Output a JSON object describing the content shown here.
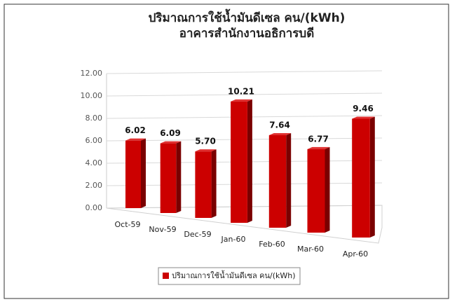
{
  "chart_data": {
    "type": "bar3d",
    "title": "ปริมาณการใช้น้ำมันดีเซล คน/(kWh)",
    "subtitle": "อาคารสำนักงานอธิการบดี",
    "categories": [
      "Oct-59",
      "Nov-59",
      "Dec-59",
      "Jan-60",
      "Feb-60",
      "Mar-60",
      "Apr-60"
    ],
    "series": [
      {
        "name": "ปริมาณการใช้น้ำมันดีเซล คน/(kWh)",
        "color": "#cc0000",
        "values": [
          6.02,
          6.09,
          5.7,
          10.21,
          7.64,
          6.77,
          9.46
        ],
        "value_labels": [
          "6.02",
          "6.09",
          "5.70",
          "10.21",
          "7.64",
          "6.77",
          "9.46"
        ]
      }
    ],
    "ylim": [
      0,
      12
    ],
    "yticks": [
      {
        "value": 0,
        "label": "0.00"
      },
      {
        "value": 2,
        "label": "2.00"
      },
      {
        "value": 4,
        "label": "4.00"
      },
      {
        "value": 6,
        "label": "6.00"
      },
      {
        "value": 8,
        "label": "8.00"
      },
      {
        "value": 10,
        "label": "10.00"
      },
      {
        "value": 12,
        "label": "12.00"
      }
    ],
    "grid": true,
    "legend": "bottom"
  }
}
